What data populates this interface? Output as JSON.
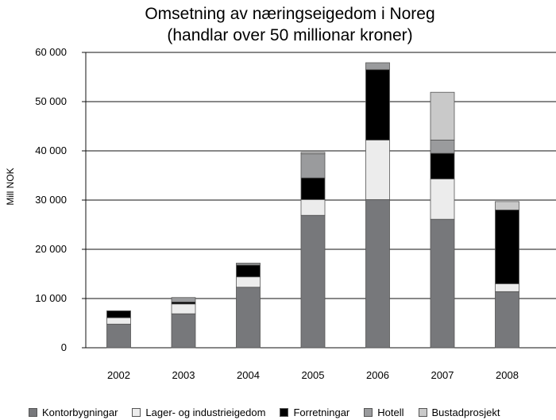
{
  "chart_data": {
    "type": "bar",
    "stacked": true,
    "title": [
      "Omsetning av næringseigedom i Noreg",
      "(handlar over 50 millionar kroner)"
    ],
    "ylabel": "Mill NOK",
    "xlabel": "",
    "ylim": [
      0,
      60000
    ],
    "yticks": [
      0,
      10000,
      20000,
      30000,
      40000,
      50000,
      60000
    ],
    "ytick_labels": [
      "0",
      "10 000",
      "20 000",
      "30 000",
      "40 000",
      "50 000",
      "60 000"
    ],
    "grid": true,
    "legend_position": "bottom",
    "categories": [
      "2002",
      "2003",
      "2004",
      "2005",
      "2006",
      "2007",
      "2008"
    ],
    "series": [
      {
        "name": "Kontorbygningar",
        "color": "#77787b",
        "values": [
          4800,
          6900,
          12300,
          26900,
          30100,
          26100,
          11400
        ]
      },
      {
        "name": "Lager- og industrieigedom",
        "color": "#ececec",
        "values": [
          1300,
          2000,
          2100,
          3200,
          12100,
          8200,
          1600
        ]
      },
      {
        "name": "Forretningar",
        "color": "#000000",
        "values": [
          1400,
          400,
          2400,
          4400,
          14300,
          5200,
          15000
        ]
      },
      {
        "name": "Hotell",
        "color": "#9a9b9d",
        "values": [
          0,
          900,
          400,
          4900,
          1400,
          2700,
          0
        ]
      },
      {
        "name": "Bustadprosjekt",
        "color": "#c9c9c9",
        "values": [
          0,
          0,
          0,
          300,
          0,
          9700,
          1700
        ]
      }
    ]
  }
}
